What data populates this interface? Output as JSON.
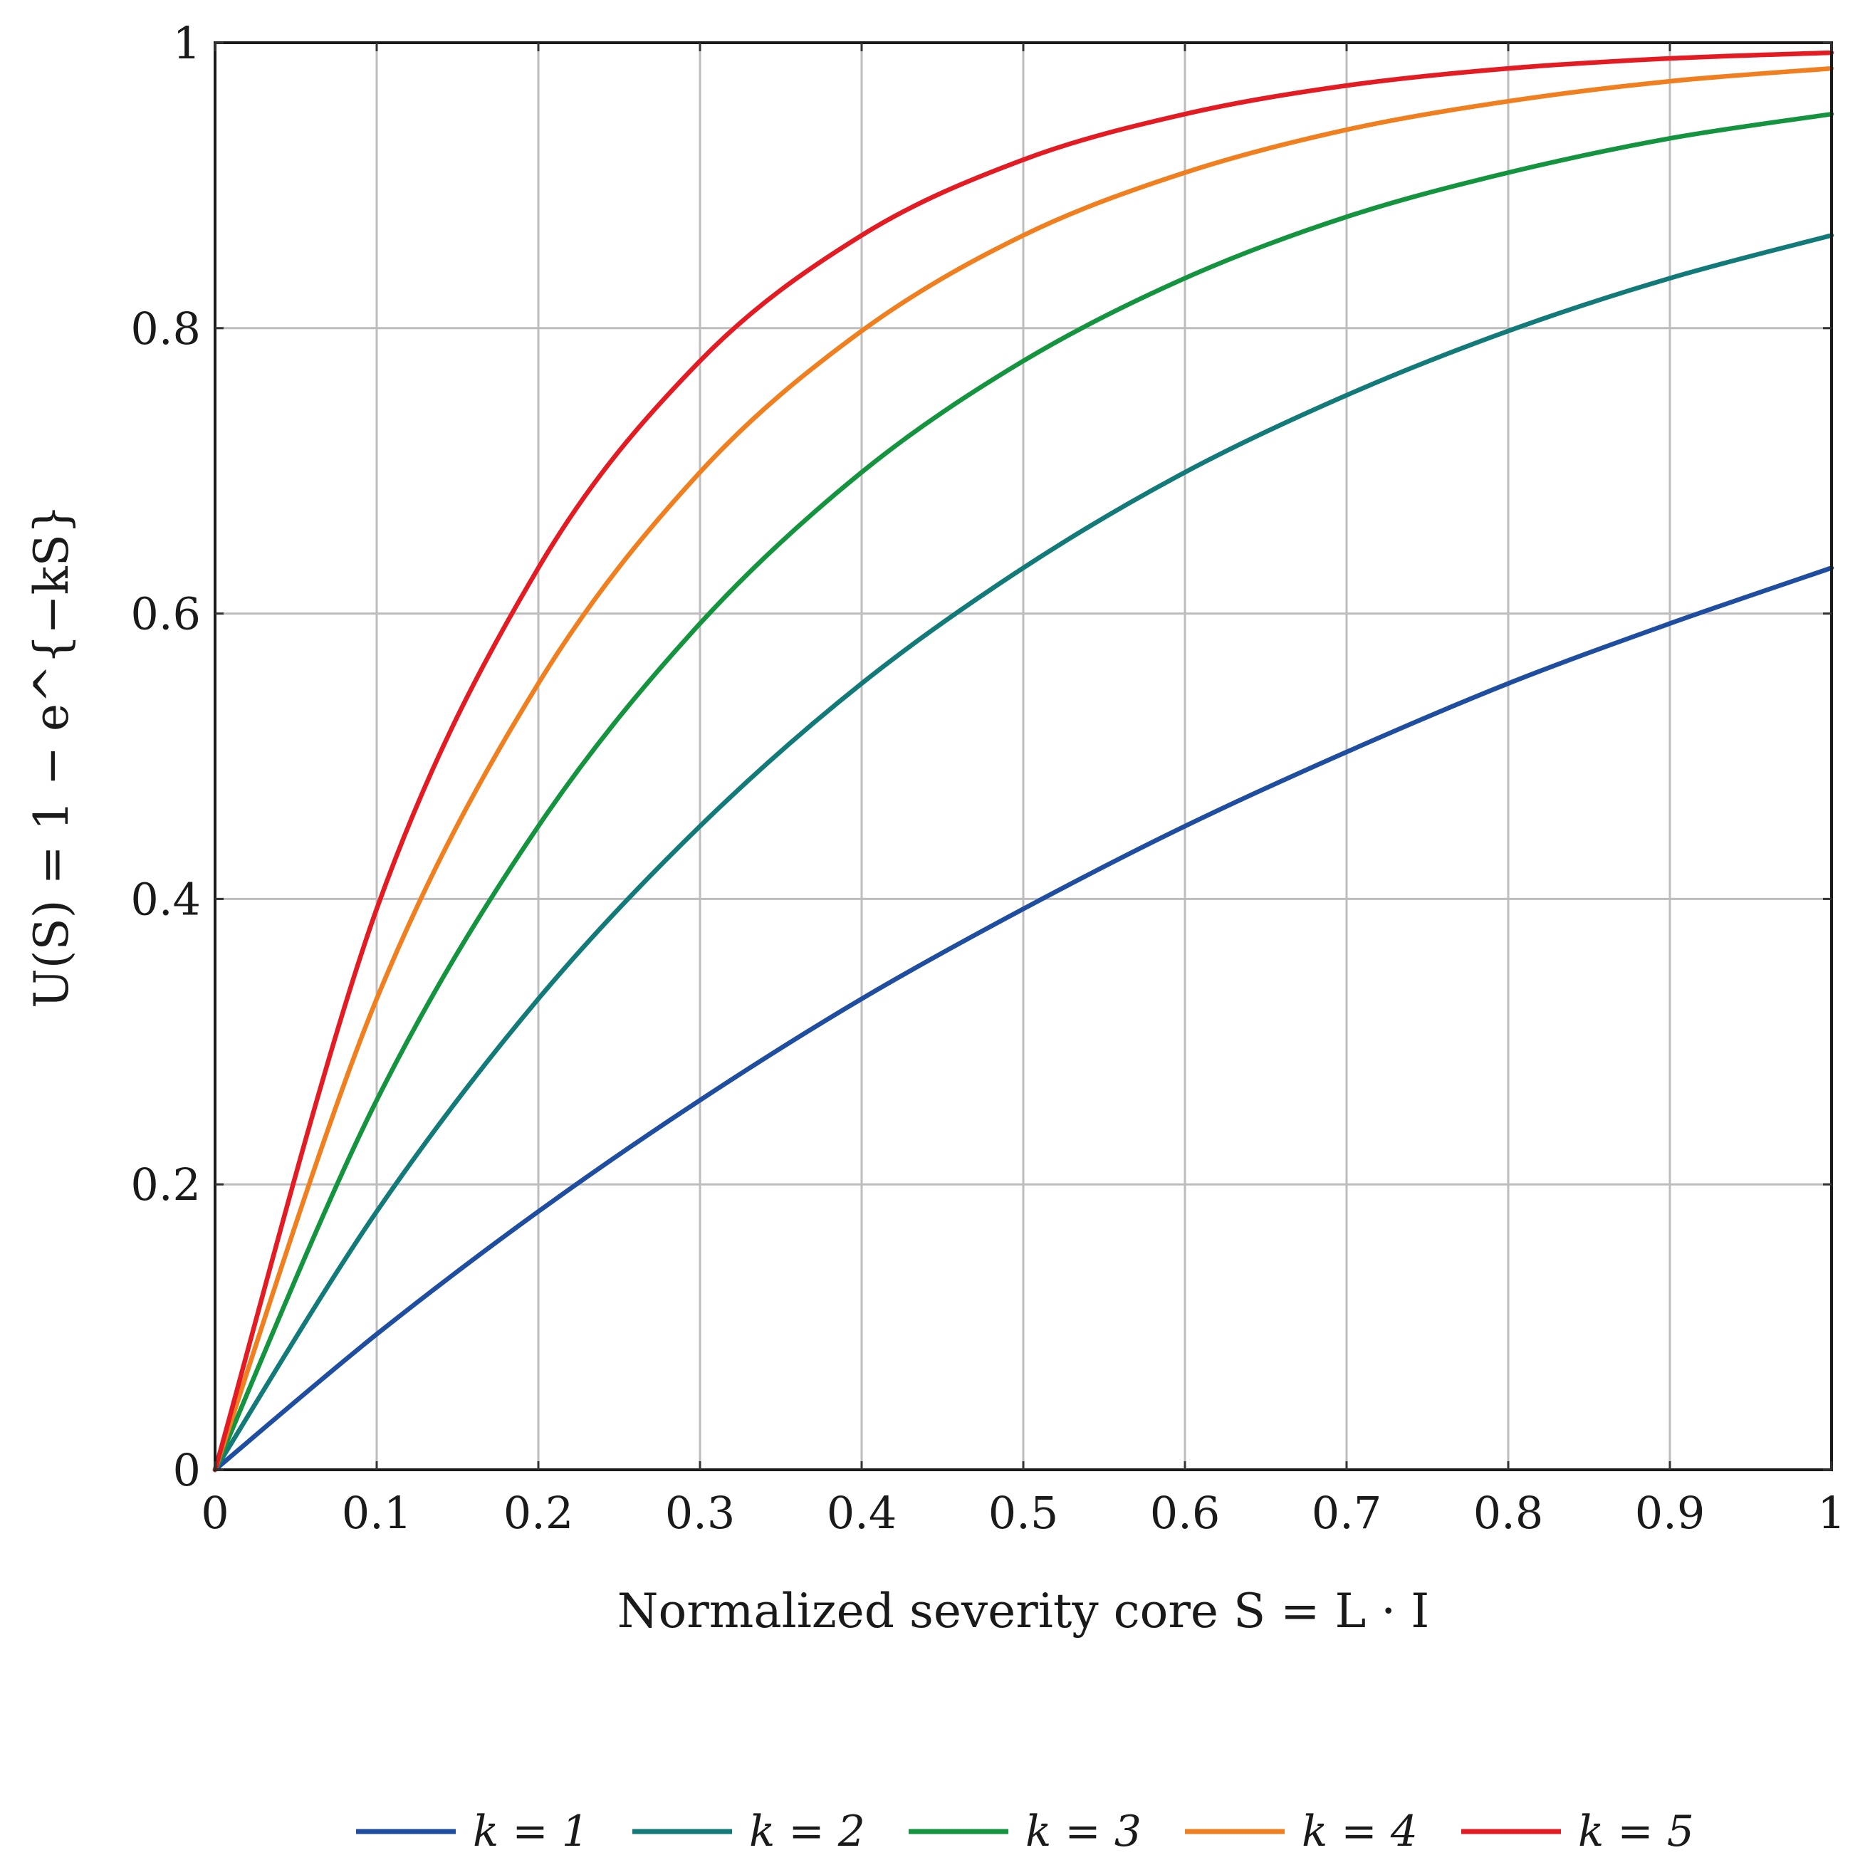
{
  "chart_data": {
    "type": "line",
    "title": "",
    "xlabel": "Normalized severity core S = L · I",
    "ylabel": "U(S) = 1 − e^{−kS}",
    "xlim": [
      0,
      1
    ],
    "ylim": [
      0,
      1
    ],
    "x_ticks": [
      {
        "value": 0,
        "label": "0"
      },
      {
        "value": 0.1,
        "label": "0.1"
      },
      {
        "value": 0.2,
        "label": "0.2"
      },
      {
        "value": 0.3,
        "label": "0.3"
      },
      {
        "value": 0.4,
        "label": "0.4"
      },
      {
        "value": 0.5,
        "label": "0.5"
      },
      {
        "value": 0.6,
        "label": "0.6"
      },
      {
        "value": 0.7,
        "label": "0.7"
      },
      {
        "value": 0.8,
        "label": "0.8"
      },
      {
        "value": 0.9,
        "label": "0.9"
      },
      {
        "value": 1,
        "label": "1"
      }
    ],
    "y_ticks": [
      {
        "value": 0,
        "label": "0"
      },
      {
        "value": 0.2,
        "label": "0.2"
      },
      {
        "value": 0.4,
        "label": "0.4"
      },
      {
        "value": 0.6,
        "label": "0.6"
      },
      {
        "value": 0.8,
        "label": "0.8"
      },
      {
        "value": 1,
        "label": "1"
      }
    ],
    "grid": true,
    "legend_position": "bottom",
    "x": [
      0,
      0.1,
      0.2,
      0.3,
      0.4,
      0.5,
      0.6,
      0.7,
      0.8,
      0.9,
      1.0
    ],
    "series": [
      {
        "name": "k = 1",
        "color": "#1f4ea1",
        "values": [
          0,
          0.095,
          0.181,
          0.259,
          0.33,
          0.393,
          0.451,
          0.503,
          0.551,
          0.593,
          0.632
        ]
      },
      {
        "name": "k = 2",
        "color": "#127a78",
        "values": [
          0,
          0.181,
          0.33,
          0.451,
          0.551,
          0.632,
          0.699,
          0.753,
          0.798,
          0.835,
          0.865
        ]
      },
      {
        "name": "k = 3",
        "color": "#14943f",
        "values": [
          0,
          0.259,
          0.451,
          0.593,
          0.699,
          0.777,
          0.835,
          0.878,
          0.909,
          0.933,
          0.95
        ]
      },
      {
        "name": "k = 4",
        "color": "#f07f1f",
        "values": [
          0,
          0.33,
          0.551,
          0.699,
          0.798,
          0.865,
          0.909,
          0.939,
          0.959,
          0.973,
          0.982
        ]
      },
      {
        "name": "k = 5",
        "color": "#e31b23",
        "values": [
          0,
          0.393,
          0.632,
          0.777,
          0.865,
          0.918,
          0.95,
          0.97,
          0.982,
          0.989,
          0.993
        ]
      }
    ]
  }
}
